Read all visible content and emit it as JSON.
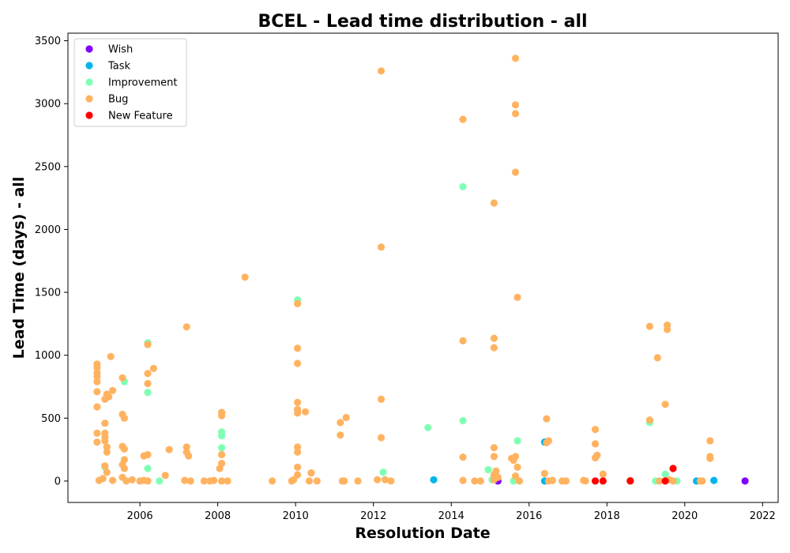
{
  "chart_data": {
    "type": "scatter",
    "title": "BCEL - Lead time distribution - all",
    "xlabel": "Resolution Date",
    "ylabel": "Lead Time (days) - all",
    "xlim": [
      2004.15,
      2022.4
    ],
    "ylim": [
      -170,
      3560
    ],
    "x_ticks": [
      2006,
      2008,
      2010,
      2012,
      2014,
      2016,
      2018,
      2020,
      2022
    ],
    "y_ticks": [
      0,
      500,
      1000,
      1500,
      2000,
      2500,
      3000,
      3500
    ],
    "grid": false,
    "legend_position": "top-left",
    "series": [
      {
        "name": "Wish",
        "color": "#8000ff",
        "points": [
          [
            2015.2,
            0
          ],
          [
            2021.55,
            0
          ]
        ]
      },
      {
        "name": "Task",
        "color": "#00b5eb",
        "points": [
          [
            2013.55,
            10
          ],
          [
            2016.4,
            310
          ],
          [
            2016.4,
            0
          ],
          [
            2020.3,
            0
          ],
          [
            2020.75,
            5
          ]
        ]
      },
      {
        "name": "Improvement",
        "color": "#80ffb4",
        "points": [
          [
            2005.1,
            110
          ],
          [
            2005.6,
            790
          ],
          [
            2006.2,
            1100
          ],
          [
            2006.2,
            705
          ],
          [
            2006.2,
            100
          ],
          [
            2006.5,
            0
          ],
          [
            2008.1,
            390
          ],
          [
            2008.1,
            360
          ],
          [
            2008.1,
            265
          ],
          [
            2010.05,
            1440
          ],
          [
            2012.25,
            70
          ],
          [
            2013.4,
            425
          ],
          [
            2014.3,
            2340
          ],
          [
            2014.3,
            480
          ],
          [
            2014.95,
            90
          ],
          [
            2015.05,
            10
          ],
          [
            2015.6,
            0
          ],
          [
            2015.7,
            320
          ],
          [
            2019.1,
            465
          ],
          [
            2019.25,
            0
          ],
          [
            2019.5,
            55
          ],
          [
            2019.8,
            0
          ]
        ]
      },
      {
        "name": "Bug",
        "color": "#ffb360",
        "points": [
          [
            2004.9,
            930
          ],
          [
            2004.9,
            900
          ],
          [
            2004.9,
            860
          ],
          [
            2004.9,
            830
          ],
          [
            2004.9,
            790
          ],
          [
            2004.9,
            710
          ],
          [
            2004.9,
            590
          ],
          [
            2004.9,
            380
          ],
          [
            2004.9,
            310
          ],
          [
            2004.95,
            5
          ],
          [
            2005.1,
            650
          ],
          [
            2005.1,
            460
          ],
          [
            2005.15,
            690
          ],
          [
            2005.2,
            670
          ],
          [
            2005.1,
            380
          ],
          [
            2005.1,
            350
          ],
          [
            2005.1,
            320
          ],
          [
            2005.15,
            270
          ],
          [
            2005.15,
            230
          ],
          [
            2005.15,
            70
          ],
          [
            2005.1,
            120
          ],
          [
            2005.05,
            20
          ],
          [
            2005.25,
            990
          ],
          [
            2005.3,
            720
          ],
          [
            2005.3,
            5
          ],
          [
            2005.55,
            820
          ],
          [
            2005.55,
            530
          ],
          [
            2005.6,
            500
          ],
          [
            2005.55,
            275
          ],
          [
            2005.6,
            255
          ],
          [
            2005.6,
            170
          ],
          [
            2005.55,
            130
          ],
          [
            2005.6,
            100
          ],
          [
            2005.55,
            30
          ],
          [
            2005.65,
            0
          ],
          [
            2005.8,
            10
          ],
          [
            2006.0,
            0
          ],
          [
            2006.1,
            200
          ],
          [
            2006.2,
            210
          ],
          [
            2006.2,
            1085
          ],
          [
            2006.2,
            855
          ],
          [
            2006.2,
            775
          ],
          [
            2006.35,
            895
          ],
          [
            2006.1,
            5
          ],
          [
            2006.2,
            0
          ],
          [
            2006.65,
            45
          ],
          [
            2006.75,
            250
          ],
          [
            2007.15,
            5
          ],
          [
            2007.2,
            1225
          ],
          [
            2007.2,
            270
          ],
          [
            2007.2,
            230
          ],
          [
            2007.25,
            200
          ],
          [
            2007.3,
            0
          ],
          [
            2007.65,
            0
          ],
          [
            2007.8,
            0
          ],
          [
            2007.9,
            5
          ],
          [
            2008.1,
            545
          ],
          [
            2008.1,
            520
          ],
          [
            2008.1,
            210
          ],
          [
            2008.1,
            140
          ],
          [
            2008.05,
            100
          ],
          [
            2008.1,
            0
          ],
          [
            2008.25,
            0
          ],
          [
            2008.7,
            1620
          ],
          [
            2009.4,
            0
          ],
          [
            2009.9,
            0
          ],
          [
            2009.95,
            10
          ],
          [
            2010.05,
            1410
          ],
          [
            2010.05,
            1055
          ],
          [
            2010.05,
            935
          ],
          [
            2010.05,
            625
          ],
          [
            2010.05,
            570
          ],
          [
            2010.05,
            540
          ],
          [
            2010.05,
            270
          ],
          [
            2010.05,
            230
          ],
          [
            2010.05,
            110
          ],
          [
            2010.05,
            50
          ],
          [
            2010.25,
            550
          ],
          [
            2010.35,
            0
          ],
          [
            2010.4,
            65
          ],
          [
            2010.55,
            0
          ],
          [
            2011.15,
            465
          ],
          [
            2011.3,
            505
          ],
          [
            2011.15,
            365
          ],
          [
            2011.2,
            0
          ],
          [
            2011.25,
            0
          ],
          [
            2011.6,
            0
          ],
          [
            2012.1,
            10
          ],
          [
            2012.2,
            3260
          ],
          [
            2012.2,
            1860
          ],
          [
            2012.2,
            650
          ],
          [
            2012.2,
            345
          ],
          [
            2012.3,
            10
          ],
          [
            2012.45,
            0
          ],
          [
            2014.3,
            2875
          ],
          [
            2014.3,
            1115
          ],
          [
            2014.3,
            190
          ],
          [
            2014.3,
            5
          ],
          [
            2014.6,
            0
          ],
          [
            2014.75,
            0
          ],
          [
            2015.1,
            2210
          ],
          [
            2015.1,
            1135
          ],
          [
            2015.1,
            1060
          ],
          [
            2015.1,
            265
          ],
          [
            2015.1,
            195
          ],
          [
            2015.15,
            80
          ],
          [
            2015.1,
            50
          ],
          [
            2015.2,
            30
          ],
          [
            2015.1,
            10
          ],
          [
            2015.65,
            3360
          ],
          [
            2015.65,
            2990
          ],
          [
            2015.65,
            2920
          ],
          [
            2015.65,
            2455
          ],
          [
            2015.7,
            1460
          ],
          [
            2015.55,
            180
          ],
          [
            2015.65,
            195
          ],
          [
            2015.6,
            165
          ],
          [
            2015.7,
            110
          ],
          [
            2015.65,
            40
          ],
          [
            2015.75,
            0
          ],
          [
            2016.4,
            60
          ],
          [
            2016.45,
            495
          ],
          [
            2016.5,
            320
          ],
          [
            2016.45,
            305
          ],
          [
            2016.5,
            0
          ],
          [
            2016.6,
            5
          ],
          [
            2016.85,
            0
          ],
          [
            2016.95,
            0
          ],
          [
            2017.4,
            5
          ],
          [
            2017.45,
            0
          ],
          [
            2017.7,
            410
          ],
          [
            2017.7,
            295
          ],
          [
            2017.75,
            205
          ],
          [
            2017.7,
            185
          ],
          [
            2017.9,
            55
          ],
          [
            2018.6,
            5
          ],
          [
            2019.1,
            1230
          ],
          [
            2019.1,
            485
          ],
          [
            2019.3,
            980
          ],
          [
            2019.35,
            0
          ],
          [
            2019.55,
            1240
          ],
          [
            2019.55,
            1205
          ],
          [
            2019.5,
            610
          ],
          [
            2019.6,
            10
          ],
          [
            2019.7,
            0
          ],
          [
            2020.65,
            320
          ],
          [
            2020.65,
            195
          ],
          [
            2020.65,
            180
          ],
          [
            2020.4,
            0
          ],
          [
            2020.45,
            0
          ]
        ]
      },
      {
        "name": "New Feature",
        "color": "#ff0000",
        "points": [
          [
            2017.7,
            0
          ],
          [
            2017.9,
            0
          ],
          [
            2018.6,
            0
          ],
          [
            2019.5,
            0
          ],
          [
            2019.7,
            100
          ]
        ]
      }
    ]
  }
}
